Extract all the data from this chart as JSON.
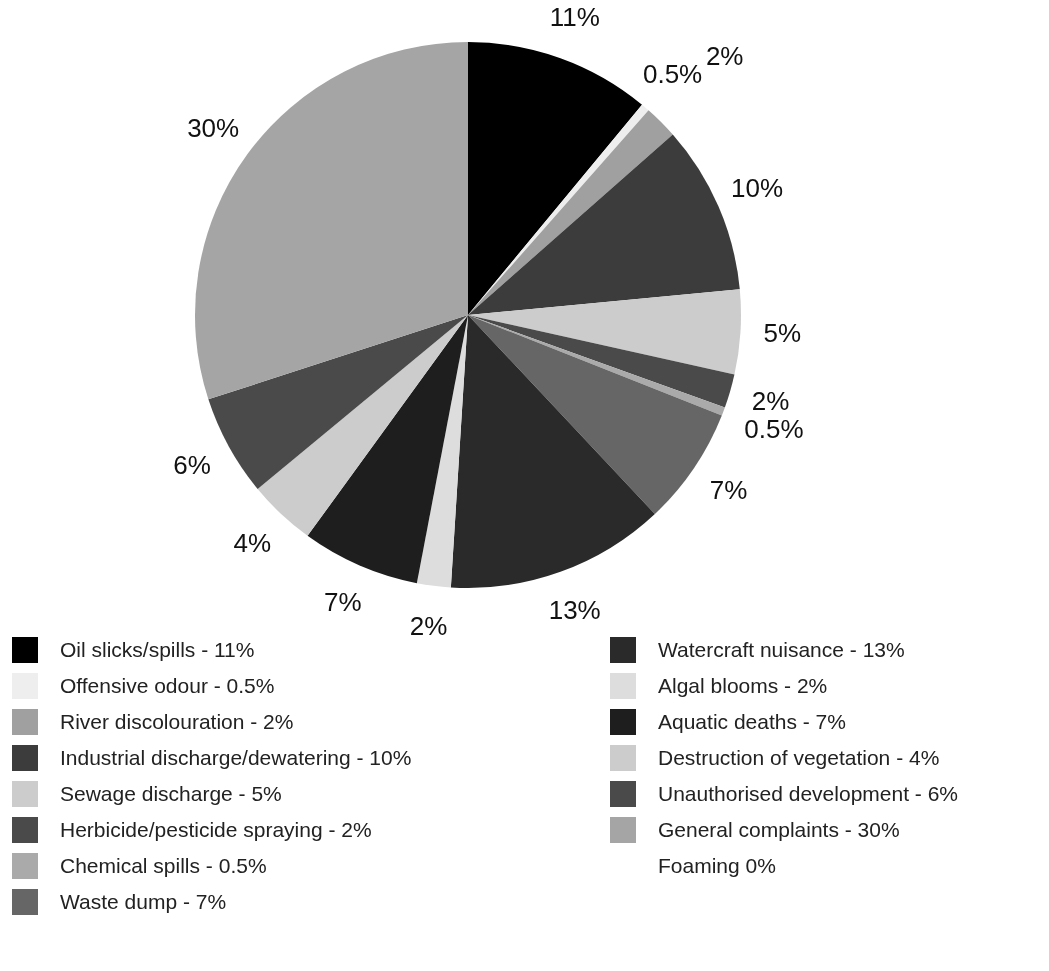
{
  "chart_data": {
    "type": "pie",
    "categories": [
      "Oil slicks/spills - 11%",
      "Offensive odour - 0.5%",
      "River discolouration - 2%",
      "Industrial discharge/dewatering - 10%",
      "Sewage discharge - 5%",
      "Herbicide/pesticide spraying - 2%",
      "Chemical spills - 0.5%",
      "Waste dump - 7%",
      "Watercraft nuisance - 13%",
      "Algal blooms - 2%",
      "Aquatic deaths - 7%",
      "Destruction of vegetation - 4%",
      "Unauthorised development - 6%",
      "General complaints - 30%",
      "Foaming 0%"
    ],
    "values": [
      11,
      0.5,
      2,
      10,
      5,
      2,
      0.5,
      7,
      13,
      2,
      7,
      4,
      6,
      30,
      0
    ],
    "colors": [
      "#000000",
      "#eeeeee",
      "#a0a0a0",
      "#3c3c3c",
      "#cccccc",
      "#4a4a4a",
      "#aaaaaa",
      "#666666",
      "#2a2a2a",
      "#dddddd",
      "#1e1e1e",
      "#cccccc",
      "#4a4a4a",
      "#a5a5a5",
      null
    ],
    "value_labels": [
      "11%",
      "0.5%",
      "2%",
      "10%",
      "5%",
      "2%",
      "0.5%",
      "7%",
      "13%",
      "2%",
      "7%",
      "4%",
      "6%",
      "30%",
      null
    ],
    "legend": "bottom"
  }
}
